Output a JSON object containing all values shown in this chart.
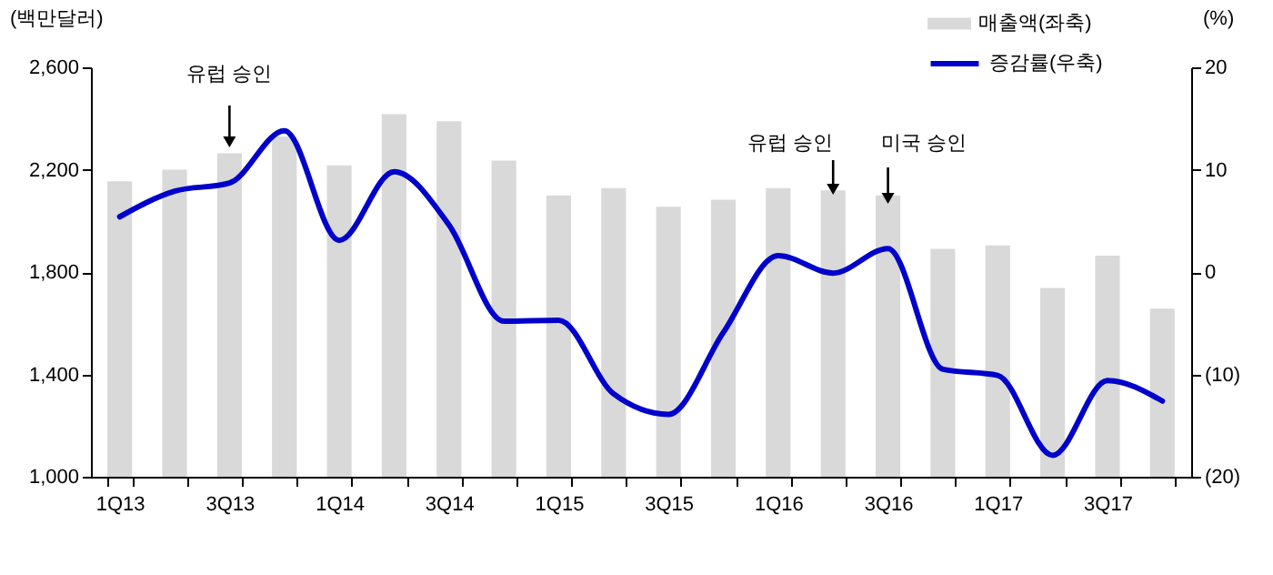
{
  "chart_data": {
    "type": "bar",
    "categories": [
      "1Q13",
      null,
      "3Q13",
      null,
      "1Q14",
      null,
      "3Q14",
      null,
      "1Q15",
      null,
      "3Q15",
      null,
      "1Q16",
      null,
      "3Q16",
      null,
      "1Q17",
      null,
      "3Q17",
      null
    ],
    "series": [
      {
        "name": "매출액(좌축)",
        "color": "#d9d9d9",
        "values": [
          2155,
          2200,
          2264,
          2330,
          2217,
          2417,
          2389,
          2236,
          2100,
          2128,
          2055,
          2083,
          2128,
          2119,
          2100,
          1891,
          1904,
          1738,
          1864,
          1657
        ]
      },
      {
        "name": "증감률(우축)",
        "type": "line",
        "axis": "y2",
        "color": "#0000cc",
        "values": [
          5.4,
          7.9,
          8.7,
          13.8,
          3.1,
          9.8,
          4.6,
          -4.8,
          -4.7,
          -11.9,
          -13.9,
          -5.9,
          1.6,
          -0.1,
          2.3,
          -9.5,
          -10.1,
          -17.9,
          -10.6,
          -12.6
        ]
      }
    ],
    "ylabel": "(백만달러)",
    "y2label": "(%)",
    "ylim": [
      1000,
      2600
    ],
    "yticks": [
      {
        "value": 1000,
        "label": "1,000"
      },
      {
        "value": 1400,
        "label": "1,400"
      },
      {
        "value": 1800,
        "label": "1,800"
      },
      {
        "value": 2200,
        "label": "2,200"
      },
      {
        "value": 2600,
        "label": "2,600"
      }
    ],
    "y2lim": [
      -20,
      20
    ],
    "y2ticks": [
      {
        "value": -20,
        "label": "(20)"
      },
      {
        "value": -10,
        "label": "(10)"
      },
      0,
      10,
      20
    ],
    "annotations": [
      "유럽 승인",
      "유럽 승인",
      "미국 승인"
    ],
    "legend": "top right",
    "grid": false
  }
}
